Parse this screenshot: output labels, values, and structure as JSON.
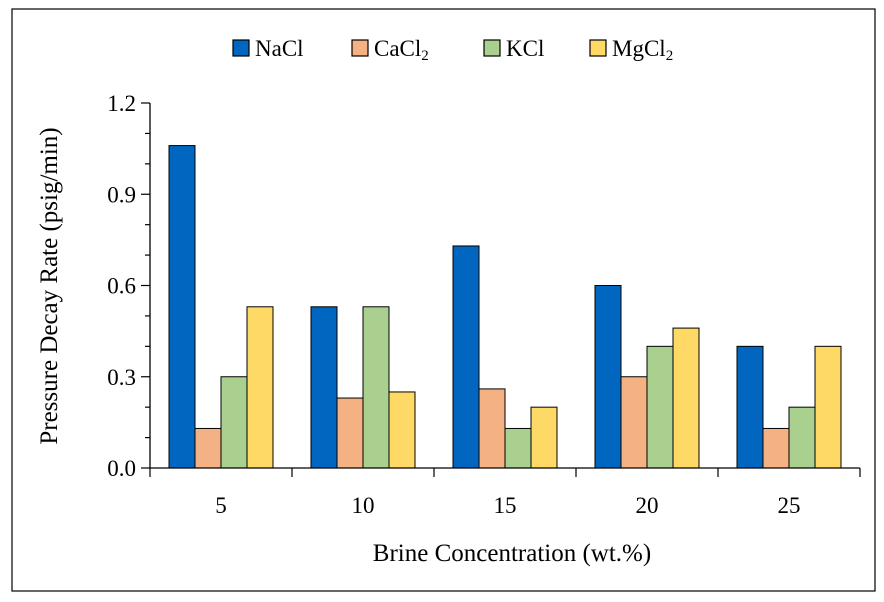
{
  "colors": {
    "NaCl": "#0066C0",
    "CaCl2": "#F4B183",
    "KCl": "#A9D08E",
    "MgCl2": "#FFD966",
    "outline": "#000000"
  },
  "chart_data": {
    "type": "bar",
    "title": "",
    "xlabel": "Brine Concentration (wt.%)",
    "ylabel": "Pressure Decay Rate (psig/min)",
    "categories": [
      "5",
      "10",
      "15",
      "20",
      "25"
    ],
    "ylim": [
      0,
      1.2
    ],
    "yticks": [
      "0.0",
      "0.3",
      "0.6",
      "0.9",
      "1.2"
    ],
    "grid": false,
    "legend_position": "top",
    "series": [
      {
        "name": "NaCl",
        "name_main": "NaCl",
        "name_sub": "",
        "values": [
          1.06,
          0.53,
          0.73,
          0.6,
          0.4
        ]
      },
      {
        "name": "CaCl₂",
        "name_main": "CaCl",
        "name_sub": "2",
        "values": [
          0.13,
          0.23,
          0.26,
          0.3,
          0.13
        ]
      },
      {
        "name": "KCl",
        "name_main": "KCl",
        "name_sub": "",
        "values": [
          0.3,
          0.53,
          0.13,
          0.4,
          0.2
        ]
      },
      {
        "name": "MgCl₂",
        "name_main": "MgCl",
        "name_sub": "2",
        "values": [
          0.53,
          0.25,
          0.2,
          0.46,
          0.4
        ]
      }
    ]
  }
}
